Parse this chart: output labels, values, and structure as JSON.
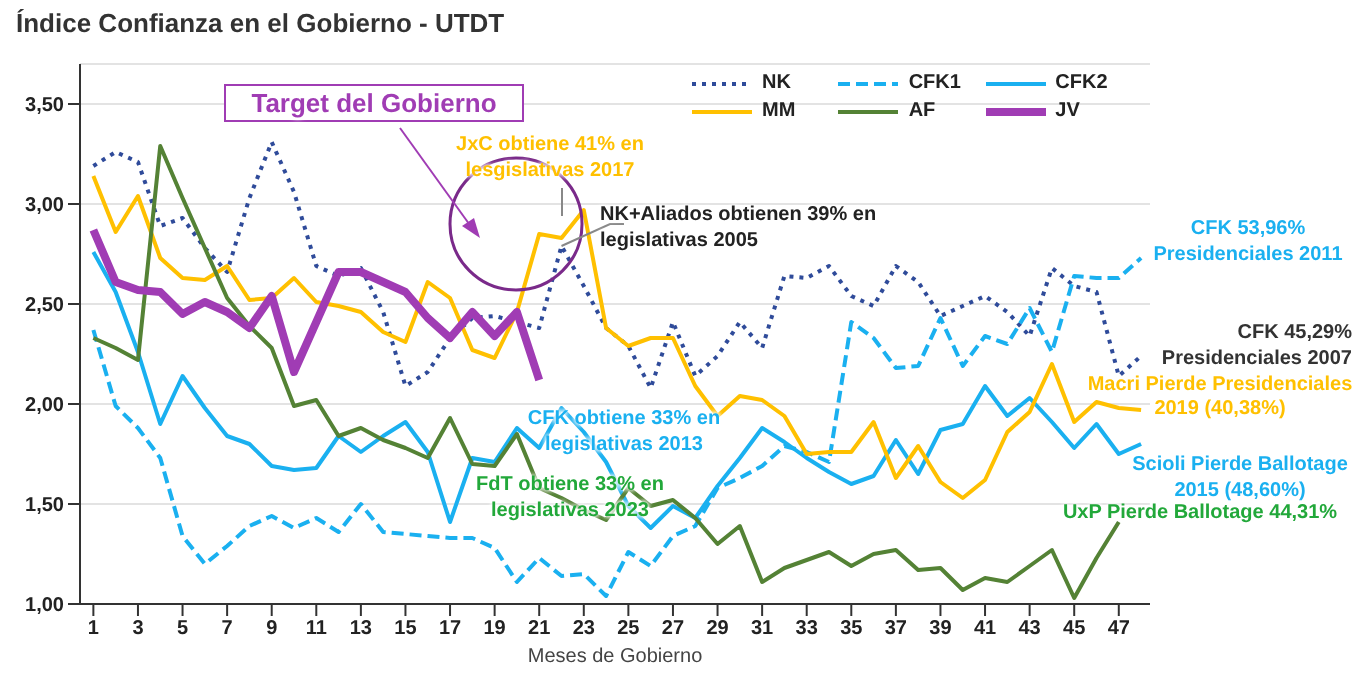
{
  "chart_data": {
    "type": "line",
    "title": "Índice Confianza en el Gobierno - UTDT",
    "xlabel": "Meses de Gobierno",
    "x": [
      1,
      2,
      3,
      4,
      5,
      6,
      7,
      8,
      9,
      10,
      11,
      12,
      13,
      14,
      15,
      16,
      17,
      18,
      19,
      20,
      21,
      22,
      23,
      24,
      25,
      26,
      27,
      28,
      29,
      30,
      31,
      32,
      33,
      34,
      35,
      36,
      37,
      38,
      39,
      40,
      41,
      42,
      43,
      44,
      45,
      46,
      47,
      48
    ],
    "xlim": [
      0.4,
      48.4
    ],
    "xticks": [
      1,
      3,
      5,
      7,
      9,
      11,
      13,
      15,
      17,
      19,
      21,
      23,
      25,
      27,
      29,
      31,
      33,
      35,
      37,
      39,
      41,
      43,
      45,
      47
    ],
    "ylim": [
      1,
      3.7
    ],
    "yticks": [
      {
        "value": 1,
        "label": "1,00"
      },
      {
        "value": 1.5,
        "label": "1,50"
      },
      {
        "value": 2,
        "label": "2,00"
      },
      {
        "value": 2.5,
        "label": "2,50"
      },
      {
        "value": 3,
        "label": "3,00"
      },
      {
        "value": 3.5,
        "label": "3,50"
      }
    ],
    "grid": "y",
    "legend": "top right",
    "marker": "none",
    "series": [
      {
        "name": "NK",
        "color": "#2f4b9a",
        "line_style": "dotted",
        "values": [
          3.19,
          3.26,
          3.21,
          2.89,
          2.93,
          2.78,
          2.66,
          3.03,
          3.31,
          3.06,
          2.69,
          2.64,
          2.68,
          2.46,
          2.09,
          2.16,
          2.33,
          2.43,
          2.44,
          2.41,
          2.38,
          2.79,
          2.59,
          2.38,
          2.29,
          2.08,
          2.41,
          2.14,
          2.24,
          2.41,
          2.28,
          2.64,
          2.63,
          2.69,
          2.54,
          2.49,
          2.69,
          2.61,
          2.44,
          2.49,
          2.54,
          2.46,
          2.34,
          2.68,
          2.59,
          2.56,
          2.14,
          2.24
        ]
      },
      {
        "name": "CFK1",
        "color": "#1ab0f0",
        "line_style": "dashed",
        "values": [
          2.37,
          1.99,
          1.88,
          1.73,
          1.34,
          1.2,
          1.29,
          1.39,
          1.44,
          1.38,
          1.43,
          1.36,
          1.5,
          1.36,
          1.35,
          1.34,
          1.33,
          1.33,
          1.28,
          1.11,
          1.23,
          1.14,
          1.15,
          1.04,
          1.26,
          1.19,
          1.34,
          1.39,
          1.58,
          1.63,
          1.69,
          1.79,
          1.76,
          1.71,
          2.41,
          2.33,
          2.18,
          2.19,
          2.43,
          2.19,
          2.34,
          2.3,
          2.48,
          2.26,
          2.64,
          2.63,
          2.63,
          2.73
        ]
      },
      {
        "name": "CFK2",
        "color": "#1ab0f0",
        "line_style": "solid",
        "values": [
          2.76,
          2.56,
          2.26,
          1.9,
          2.14,
          1.98,
          1.84,
          1.8,
          1.69,
          1.67,
          1.68,
          1.84,
          1.76,
          1.84,
          1.91,
          1.76,
          1.41,
          1.73,
          1.71,
          1.88,
          1.78,
          1.98,
          1.86,
          1.71,
          1.49,
          1.38,
          1.49,
          1.43,
          1.59,
          1.73,
          1.88,
          1.81,
          1.73,
          1.66,
          1.6,
          1.64,
          1.82,
          1.65,
          1.87,
          1.9,
          2.09,
          1.94,
          2.03,
          1.91,
          1.78,
          1.9,
          1.75,
          1.8
        ]
      },
      {
        "name": "MM",
        "color": "#ffc000",
        "line_style": "solid",
        "values": [
          3.14,
          2.86,
          3.04,
          2.73,
          2.63,
          2.62,
          2.69,
          2.52,
          2.53,
          2.63,
          2.51,
          2.49,
          2.46,
          2.36,
          2.31,
          2.61,
          2.53,
          2.27,
          2.23,
          2.46,
          2.85,
          2.83,
          2.97,
          2.38,
          2.29,
          2.33,
          2.33,
          2.09,
          1.94,
          2.04,
          2.02,
          1.94,
          1.75,
          1.76,
          1.76,
          1.91,
          1.63,
          1.79,
          1.61,
          1.53,
          1.62,
          1.86,
          1.96,
          2.2,
          1.91,
          2.01,
          1.98,
          1.97
        ]
      },
      {
        "name": "AF",
        "color": "#548235",
        "line_style": "solid",
        "values": [
          2.33,
          2.28,
          2.22,
          3.29,
          3.03,
          2.78,
          2.53,
          2.39,
          2.28,
          1.99,
          2.02,
          1.84,
          1.88,
          1.82,
          1.78,
          1.73,
          1.93,
          1.7,
          1.69,
          1.85,
          1.58,
          1.53,
          1.47,
          1.42,
          1.58,
          1.49,
          1.52,
          1.43,
          1.3,
          1.39,
          1.11,
          1.18,
          1.22,
          1.26,
          1.19,
          1.25,
          1.27,
          1.17,
          1.18,
          1.07,
          1.13,
          1.11,
          1.19,
          1.27,
          1.03,
          1.23,
          1.41,
          null
        ]
      },
      {
        "name": "JV",
        "color": "#a03cb4",
        "line_style": "solid",
        "values": [
          2.87,
          2.61,
          2.57,
          2.56,
          2.45,
          2.51,
          2.46,
          2.38,
          2.54,
          2.16,
          2.41,
          2.66,
          2.66,
          2.61,
          2.56,
          2.43,
          2.33,
          2.46,
          2.34,
          2.46,
          2.12,
          null,
          null,
          null,
          null,
          null,
          null,
          null,
          null,
          null,
          null,
          null,
          null,
          null,
          null,
          null,
          null,
          null,
          null,
          null,
          null,
          null,
          null,
          null,
          null,
          null,
          null,
          null
        ]
      }
    ],
    "annotations": [
      "Target del Gobierno",
      "JxC obtiene 41% en\nlesgislativas 2017",
      {
        "text": "NK+Aliados obtienen 39% en\nlegislativas 2005",
        "x": 22,
        "y": 2.79
      },
      "CFK obtiene 33% en\nlegislativas 2013",
      "FdT obtiene 33% en\nlegislativas 2023",
      "CFK 53,96%\nPresidenciales 2011",
      "CFK 45,29%\nPresidenciales 2007",
      "Macri Pierde Presidenciales\n2019 (40,38%)",
      "Scioli Pierde Ballotage\n2015 (48,60%)",
      "UxP Pierde Ballotage 44,31%"
    ]
  }
}
